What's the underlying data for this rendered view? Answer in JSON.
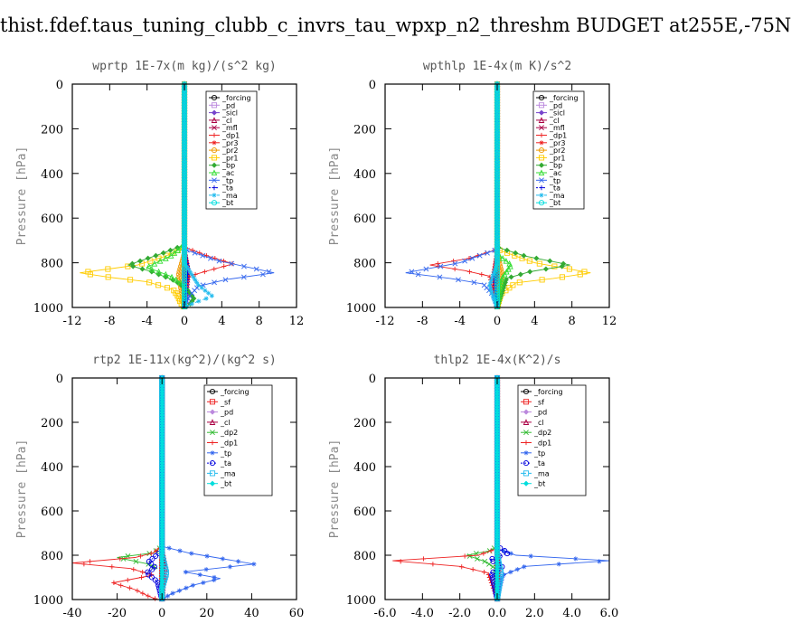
{
  "page_title": "thist.fdef.taus_tuning_clubb_c_invrs_tau_wpxp_n2_threshm  BUDGET at255E,-75N",
  "colors": {
    "_forcing": "#000000",
    "_pd": "#bb88dd",
    "_sicl": "#7744cc",
    "_cl": "#aa0044",
    "_mfl": "#aa0044",
    "_dp1": "#ee2222",
    "_pr3": "#ee2222",
    "_pr2": "#ee9900",
    "_pr1": "#ffcc00",
    "_bp": "#33aa33",
    "_ac": "#33dd33",
    "_tp": "#3366ee",
    "_ta": "#0000dd",
    "_ma": "#22bbee",
    "_bt": "#00dddd",
    "_sf": "#ee2222",
    "_dp2": "#33bb33"
  },
  "chart_data": [
    {
      "type": "line",
      "id": "wprtp",
      "title": "wprtp   1E-7x(m kg)/(s^2 kg)",
      "ylabel": "Pressure [hPa]",
      "xlim": [
        -12,
        12
      ],
      "ylim": [
        1000,
        0
      ],
      "y_inverted": true,
      "xticks": [
        -12,
        -8,
        -4,
        0,
        4,
        8,
        12
      ],
      "xtick_labels": [
        "-12",
        "-8",
        "-4",
        "0",
        "4",
        "8",
        "12"
      ],
      "yticks": [
        0,
        200,
        400,
        600,
        800,
        1000
      ],
      "ytick_labels": [
        "0",
        "200",
        "400",
        "600",
        "800",
        "1000"
      ],
      "legend": [
        "_forcing",
        "_pd",
        "_sicl",
        "_cl",
        "_mfl",
        "_dp1",
        "_pr3",
        "_pr2",
        "_pr1",
        "_bp",
        "_ac",
        "_tp",
        "_ta",
        "_ma",
        "_bt"
      ],
      "series": [
        {
          "name": "_forcing",
          "x": [
            0,
            0
          ],
          "y": [
            0,
            1000
          ]
        },
        {
          "name": "_pd",
          "x": [
            0,
            0
          ],
          "y": [
            0,
            1000
          ]
        },
        {
          "name": "_sicl",
          "x": [
            0,
            0
          ],
          "y": [
            0,
            1000
          ]
        },
        {
          "name": "_cl",
          "x": [
            0,
            0,
            0.4,
            0.2,
            0
          ],
          "y": [
            0,
            740,
            830,
            920,
            1000
          ]
        },
        {
          "name": "_mfl",
          "x": [
            0,
            0,
            0
          ],
          "y": [
            0,
            760,
            1000
          ]
        },
        {
          "name": "_dp1",
          "x": [
            0,
            0,
            2.5,
            5.2,
            3.0,
            0.5,
            0,
            0
          ],
          "y": [
            0,
            730,
            770,
            805,
            830,
            860,
            900,
            1000
          ]
        },
        {
          "name": "_pr3",
          "x": [
            0,
            0,
            0.3,
            0
          ],
          "y": [
            0,
            760,
            850,
            1000
          ]
        },
        {
          "name": "_pr2",
          "x": [
            0,
            0,
            -0.6,
            -0.3,
            0
          ],
          "y": [
            0,
            760,
            850,
            930,
            1000
          ]
        },
        {
          "name": "_pr1",
          "x": [
            0,
            0,
            -2.0,
            -5.0,
            -11.2,
            -8.0,
            -4.0,
            -1.2,
            -0.7,
            -0.4,
            0
          ],
          "y": [
            0,
            730,
            770,
            810,
            845,
            865,
            885,
            920,
            950,
            980,
            1000
          ]
        },
        {
          "name": "_bp",
          "x": [
            0,
            0,
            -2.5,
            -6.0,
            -3.5,
            -1.0,
            0.3,
            1.0,
            0.6,
            0
          ],
          "y": [
            0,
            720,
            760,
            810,
            840,
            880,
            920,
            960,
            985,
            1000
          ]
        },
        {
          "name": "_ac",
          "x": [
            0,
            0,
            -1.5,
            -4.0,
            -1.5,
            0,
            0
          ],
          "y": [
            0,
            720,
            770,
            820,
            860,
            900,
            1000
          ]
        },
        {
          "name": "_tp",
          "x": [
            0,
            0,
            3.5,
            9.6,
            4.5,
            1.5,
            0.5,
            0
          ],
          "y": [
            0,
            740,
            790,
            845,
            875,
            905,
            950,
            1000
          ]
        },
        {
          "name": "_ta",
          "x": [
            0,
            0,
            0.4,
            0.2,
            0
          ],
          "y": [
            0,
            760,
            830,
            900,
            1000
          ]
        },
        {
          "name": "_ma",
          "x": [
            0,
            0,
            1.5,
            3.0,
            1.0,
            0
          ],
          "y": [
            0,
            800,
            900,
            950,
            980,
            1000
          ]
        },
        {
          "name": "_bt",
          "x": [
            0,
            0
          ],
          "y": [
            0,
            1000
          ]
        }
      ]
    },
    {
      "type": "line",
      "id": "wpthlp",
      "title": "wpthlp   1E-4x(m K)/s^2",
      "ylabel": "Pressure [hPa]",
      "xlim": [
        -12,
        12
      ],
      "ylim": [
        1000,
        0
      ],
      "y_inverted": true,
      "xticks": [
        -12,
        -8,
        -4,
        0,
        4,
        8,
        12
      ],
      "xtick_labels": [
        "-12",
        "-8",
        "-4",
        "0",
        "4",
        "8",
        "12"
      ],
      "yticks": [
        0,
        200,
        400,
        600,
        800,
        1000
      ],
      "ytick_labels": [
        "0",
        "200",
        "400",
        "600",
        "800",
        "1000"
      ],
      "legend": [
        "_forcing",
        "_pd",
        "_sicl",
        "_cl",
        "_mfl",
        "_dp1",
        "_pr3",
        "_pr2",
        "_pr1",
        "_bp",
        "_ac",
        "_tp",
        "_ta",
        "_ma",
        "_bt"
      ],
      "series": [
        {
          "name": "_forcing",
          "x": [
            0,
            0
          ],
          "y": [
            0,
            1000
          ]
        },
        {
          "name": "_pd",
          "x": [
            0,
            0
          ],
          "y": [
            0,
            1000
          ]
        },
        {
          "name": "_sicl",
          "x": [
            0,
            0
          ],
          "y": [
            0,
            1000
          ]
        },
        {
          "name": "_cl",
          "x": [
            0,
            0
          ],
          "y": [
            0,
            1000
          ]
        },
        {
          "name": "_mfl",
          "x": [
            0,
            0,
            -0.3,
            0
          ],
          "y": [
            0,
            760,
            850,
            1000
          ]
        },
        {
          "name": "_dp1",
          "x": [
            0,
            0,
            -3.0,
            -7.2,
            -3.5,
            -0.8,
            0
          ],
          "y": [
            0,
            740,
            780,
            810,
            835,
            860,
            1000
          ]
        },
        {
          "name": "_pr3",
          "x": [
            0,
            0,
            -0.4,
            0
          ],
          "y": [
            0,
            760,
            850,
            1000
          ]
        },
        {
          "name": "_pr2",
          "x": [
            0,
            0,
            0.5,
            0
          ],
          "y": [
            0,
            760,
            850,
            1000
          ]
        },
        {
          "name": "_pr1",
          "x": [
            0,
            0,
            4.0,
            10.0,
            6.0,
            2.0,
            0.4,
            0
          ],
          "y": [
            0,
            740,
            800,
            845,
            870,
            890,
            940,
            1000
          ]
        },
        {
          "name": "_bp",
          "x": [
            0,
            0,
            3.0,
            7.8,
            3.5,
            1.0,
            0
          ],
          "y": [
            0,
            730,
            770,
            810,
            840,
            870,
            1000
          ]
        },
        {
          "name": "_ac",
          "x": [
            0,
            0,
            1.5,
            0.5,
            0
          ],
          "y": [
            0,
            760,
            810,
            870,
            1000
          ]
        },
        {
          "name": "_tp",
          "x": [
            0,
            0,
            -4.0,
            -9.8,
            -5.0,
            -1.5,
            -0.3,
            0
          ],
          "y": [
            0,
            740,
            800,
            845,
            870,
            895,
            950,
            1000
          ]
        },
        {
          "name": "_ta",
          "x": [
            0,
            0,
            -0.3,
            0
          ],
          "y": [
            0,
            780,
            870,
            1000
          ]
        },
        {
          "name": "_ma",
          "x": [
            0,
            0,
            -0.8,
            -0.4,
            0
          ],
          "y": [
            0,
            800,
            900,
            960,
            1000
          ]
        },
        {
          "name": "_bt",
          "x": [
            0,
            0
          ],
          "y": [
            0,
            1000
          ]
        }
      ]
    },
    {
      "type": "line",
      "id": "rtp2",
      "title": "rtp2   1E-11x(kg^2)/(kg^2 s)",
      "ylabel": "Pressure [hPa]",
      "xlim": [
        -40,
        60
      ],
      "ylim": [
        1000,
        0
      ],
      "y_inverted": true,
      "xticks": [
        -40,
        -20,
        0,
        20,
        40,
        60
      ],
      "xtick_labels": [
        "-40",
        "-20",
        "0",
        "20",
        "40",
        "60"
      ],
      "yticks": [
        0,
        200,
        400,
        600,
        800,
        1000
      ],
      "ytick_labels": [
        "0",
        "200",
        "400",
        "600",
        "800",
        "1000"
      ],
      "legend": [
        "_forcing",
        "_sf",
        "_pd",
        "_cl",
        "_dp2",
        "_dp1",
        "_tp",
        "_ta",
        "_ma",
        "_bt"
      ],
      "series": [
        {
          "name": "_forcing",
          "x": [
            0,
            0
          ],
          "y": [
            0,
            1000
          ]
        },
        {
          "name": "_sf",
          "x": [
            0,
            0
          ],
          "y": [
            0,
            1000
          ]
        },
        {
          "name": "_pd",
          "x": [
            0,
            0
          ],
          "y": [
            0,
            1000
          ]
        },
        {
          "name": "_cl",
          "x": [
            0,
            0,
            1.5,
            0.5,
            0
          ],
          "y": [
            0,
            770,
            850,
            930,
            1000
          ]
        },
        {
          "name": "_dp2",
          "x": [
            0,
            0,
            -4.0,
            -20.0,
            -6.0,
            -2.0
          ],
          "y": [
            0,
            760,
            790,
            810,
            840,
            860
          ]
        },
        {
          "name": "_dp1",
          "x": [
            0,
            0,
            -4.0,
            -12.0,
            -40.0,
            -14.0,
            -4.0,
            -22.0,
            -12.0,
            -6.0,
            -2.0
          ],
          "y": [
            0,
            760,
            790,
            810,
            835,
            860,
            890,
            925,
            955,
            985,
            1000
          ]
        },
        {
          "name": "_tp",
          "x": [
            0,
            0,
            12.0,
            41.0,
            10.0,
            26.0,
            14.0,
            4.0,
            0
          ],
          "y": [
            0,
            760,
            790,
            840,
            875,
            905,
            935,
            975,
            1000
          ]
        },
        {
          "name": "_ta",
          "x": [
            0,
            0,
            -6.0,
            -3.0,
            -7.0,
            -2.0,
            0
          ],
          "y": [
            0,
            780,
            830,
            855,
            880,
            920,
            1000
          ]
        },
        {
          "name": "_ma",
          "x": [
            0,
            0,
            2.0,
            0,
            0
          ],
          "y": [
            0,
            800,
            880,
            950,
            1000
          ]
        },
        {
          "name": "_bt",
          "x": [
            0,
            0
          ],
          "y": [
            0,
            1000
          ]
        }
      ]
    },
    {
      "type": "line",
      "id": "thlp2",
      "title": "thlp2   1E-4x(K^2)/s",
      "ylabel": "Pressure [hPa]",
      "xlim": [
        -6,
        6
      ],
      "ylim": [
        1000,
        0
      ],
      "y_inverted": true,
      "xticks": [
        -6,
        -4,
        -2,
        0,
        2,
        4,
        6
      ],
      "xtick_labels": [
        "-6.0",
        "-4.0",
        "-2.0",
        "0.0",
        "2.0",
        "4.0",
        "6.0"
      ],
      "yticks": [
        0,
        200,
        400,
        600,
        800,
        1000
      ],
      "ytick_labels": [
        "0",
        "200",
        "400",
        "600",
        "800",
        "1000"
      ],
      "legend": [
        "_forcing",
        "_sf",
        "_pd",
        "_cl",
        "_dp2",
        "_dp1",
        "_tp",
        "_ta",
        "_ma",
        "_bt"
      ],
      "series": [
        {
          "name": "_forcing",
          "x": [
            0,
            0
          ],
          "y": [
            0,
            1000
          ]
        },
        {
          "name": "_sf",
          "x": [
            0,
            0
          ],
          "y": [
            0,
            1000
          ]
        },
        {
          "name": "_pd",
          "x": [
            0,
            0
          ],
          "y": [
            0,
            1000
          ]
        },
        {
          "name": "_cl",
          "x": [
            0,
            0,
            0.1,
            0
          ],
          "y": [
            0,
            780,
            850,
            1000
          ]
        },
        {
          "name": "_dp2",
          "x": [
            0,
            0,
            -0.4,
            -1.6,
            -0.6,
            -0.1,
            0
          ],
          "y": [
            0,
            760,
            780,
            800,
            830,
            860,
            1000
          ]
        },
        {
          "name": "_dp1",
          "x": [
            0,
            0,
            -1.0,
            -5.6,
            -2.0,
            -0.5,
            0
          ],
          "y": [
            0,
            770,
            800,
            825,
            850,
            880,
            1000
          ]
        },
        {
          "name": "_tp",
          "x": [
            0,
            0,
            1.0,
            6.0,
            1.5,
            0.3,
            0
          ],
          "y": [
            0,
            770,
            800,
            825,
            850,
            890,
            1000
          ]
        },
        {
          "name": "_ta",
          "x": [
            0,
            0,
            0.6,
            -0.4,
            0.3,
            -0.3,
            0
          ],
          "y": [
            0,
            760,
            790,
            820,
            850,
            880,
            1000
          ]
        },
        {
          "name": "_ma",
          "x": [
            0,
            0,
            0.2,
            0
          ],
          "y": [
            0,
            800,
            880,
            1000
          ]
        },
        {
          "name": "_bt",
          "x": [
            0,
            0
          ],
          "y": [
            0,
            1000
          ]
        }
      ]
    }
  ]
}
